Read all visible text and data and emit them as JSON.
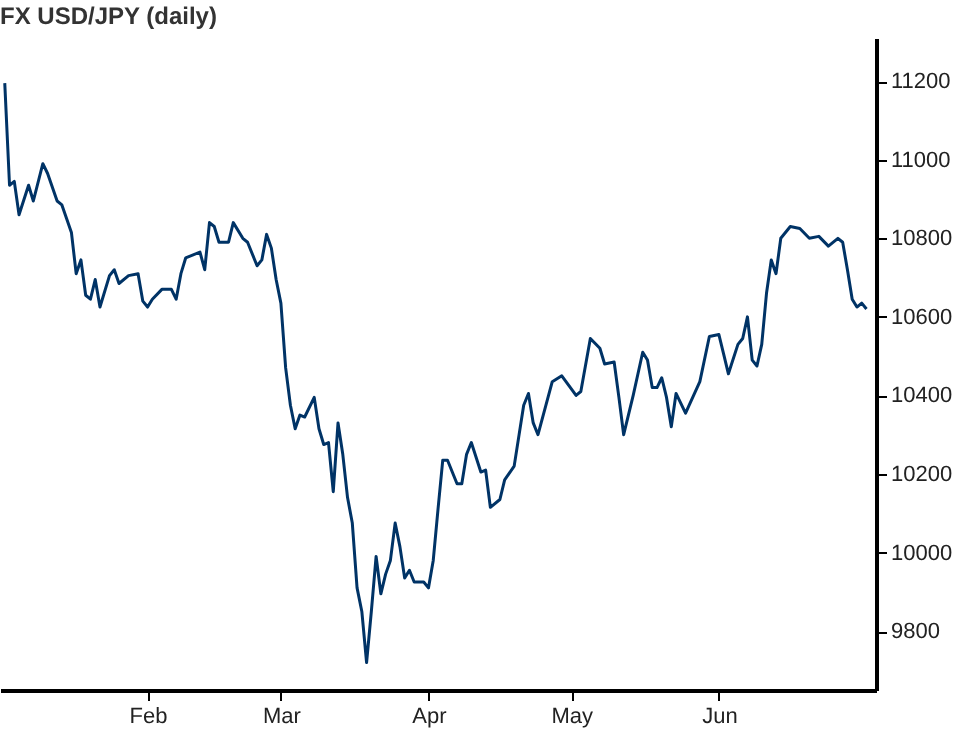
{
  "chart_data": {
    "type": "line",
    "title": "FX USD/JPY (daily)",
    "x": [
      "--01-02",
      "--01-03",
      "--01-04",
      "--01-05",
      "--01-07",
      "--01-08",
      "--01-10",
      "--01-11",
      "--01-13",
      "--01-14",
      "--01-15",
      "--01-16",
      "--01-17",
      "--01-18",
      "--01-19",
      "--01-20",
      "--01-21",
      "--01-22",
      "--01-24",
      "--01-25",
      "--01-26",
      "--01-28",
      "--01-30",
      "--01-31",
      "--02-01",
      "--02-02",
      "--02-04",
      "--02-06",
      "--02-07",
      "--02-08",
      "--02-09",
      "--02-12",
      "--02-13",
      "--02-14",
      "--02-15",
      "--02-16",
      "--02-18",
      "--02-19",
      "--02-21",
      "--02-22",
      "--02-24",
      "--02-25",
      "--02-26",
      "--02-27",
      "--02-28",
      "--03-01",
      "--03-02",
      "--03-03",
      "--03-04",
      "--03-05",
      "--03-06",
      "--03-08",
      "--03-09",
      "--03-10",
      "--03-11",
      "--03-12",
      "--03-13",
      "--03-14",
      "--03-15",
      "--03-16",
      "--03-17",
      "--03-18",
      "--03-19",
      "--03-20",
      "--03-21",
      "--03-22",
      "--03-23",
      "--03-24",
      "--03-25",
      "--03-26",
      "--03-27",
      "--03-28",
      "--03-29",
      "--03-31",
      "--04-01",
      "--04-02",
      "--04-03",
      "--04-04",
      "--04-05",
      "--04-07",
      "--04-08",
      "--04-09",
      "--04-10",
      "--04-12",
      "--04-13",
      "--04-14",
      "--04-16",
      "--04-17",
      "--04-19",
      "--04-21",
      "--04-22",
      "--04-23",
      "--04-24",
      "--04-27",
      "--04-29",
      "--05-02",
      "--05-03",
      "--05-05",
      "--05-07",
      "--05-08",
      "--05-10",
      "--05-11",
      "--05-12",
      "--05-14",
      "--05-16",
      "--05-17",
      "--05-18",
      "--05-19",
      "--05-20",
      "--05-21",
      "--05-22",
      "--05-23",
      "--05-25",
      "--05-28",
      "--05-30",
      "--06-01",
      "--06-02",
      "--06-03",
      "--06-05",
      "--06-06",
      "--06-07",
      "--06-08",
      "--06-09",
      "--06-10",
      "--06-11",
      "--06-12",
      "--06-13",
      "--06-14",
      "--06-16",
      "--06-18",
      "--06-20",
      "--06-22",
      "--06-24",
      "--06-26",
      "--06-27",
      "--06-28",
      "--06-29",
      "--06-30",
      "--07-01",
      "--07-02"
    ],
    "series": [
      {
        "color": "#003366",
        "values": [
          11195,
          10935,
          10945,
          10860,
          10935,
          10895,
          10990,
          10965,
          10895,
          10885,
          10850,
          10815,
          10710,
          10745,
          10655,
          10645,
          10695,
          10625,
          10705,
          10720,
          10685,
          10705,
          10710,
          10640,
          10625,
          10645,
          10670,
          10670,
          10645,
          10710,
          10750,
          10765,
          10720,
          10840,
          10830,
          10790,
          10790,
          10840,
          10800,
          10790,
          10730,
          10745,
          10810,
          10775,
          10695,
          10635,
          10470,
          10375,
          10315,
          10350,
          10345,
          10395,
          10315,
          10275,
          10280,
          10155,
          10330,
          10250,
          10140,
          10075,
          9910,
          9850,
          9720,
          9850,
          9990,
          9895,
          9945,
          9980,
          10075,
          10015,
          9935,
          9955,
          9925,
          9925,
          9910,
          9980,
          10110,
          10235,
          10235,
          10175,
          10175,
          10250,
          10280,
          10205,
          10210,
          10115,
          10135,
          10185,
          10220,
          10375,
          10405,
          10330,
          10300,
          10435,
          10450,
          10400,
          10410,
          10545,
          10520,
          10480,
          10485,
          10395,
          10300,
          10400,
          10510,
          10490,
          10420,
          10420,
          10445,
          10395,
          10320,
          10405,
          10355,
          10435,
          10550,
          10555,
          10505,
          10455,
          10530,
          10545,
          10600,
          10490,
          10475,
          10530,
          10660,
          10745,
          10710,
          10800,
          10830,
          10825,
          10800,
          10805,
          10780,
          10800,
          10790,
          10720,
          10645,
          10625,
          10635,
          10620
        ]
      }
    ],
    "xlim": [
      "--01-01",
      "--07-04"
    ],
    "xticks": [
      {
        "value": "--02-01",
        "label": "Feb"
      },
      {
        "value": "--03-01",
        "label": "Mar"
      },
      {
        "value": "--04-01",
        "label": "Apr"
      },
      {
        "value": "--05-01",
        "label": "May"
      },
      {
        "value": "--06-01",
        "label": "Jun"
      }
    ],
    "ylim": [
      9650,
      11310
    ],
    "yticks": [
      9800,
      10000,
      10200,
      10400,
      10600,
      10800,
      11000,
      11200
    ],
    "grid": false,
    "legend": false,
    "marker": "none",
    "line_style": "solid"
  }
}
